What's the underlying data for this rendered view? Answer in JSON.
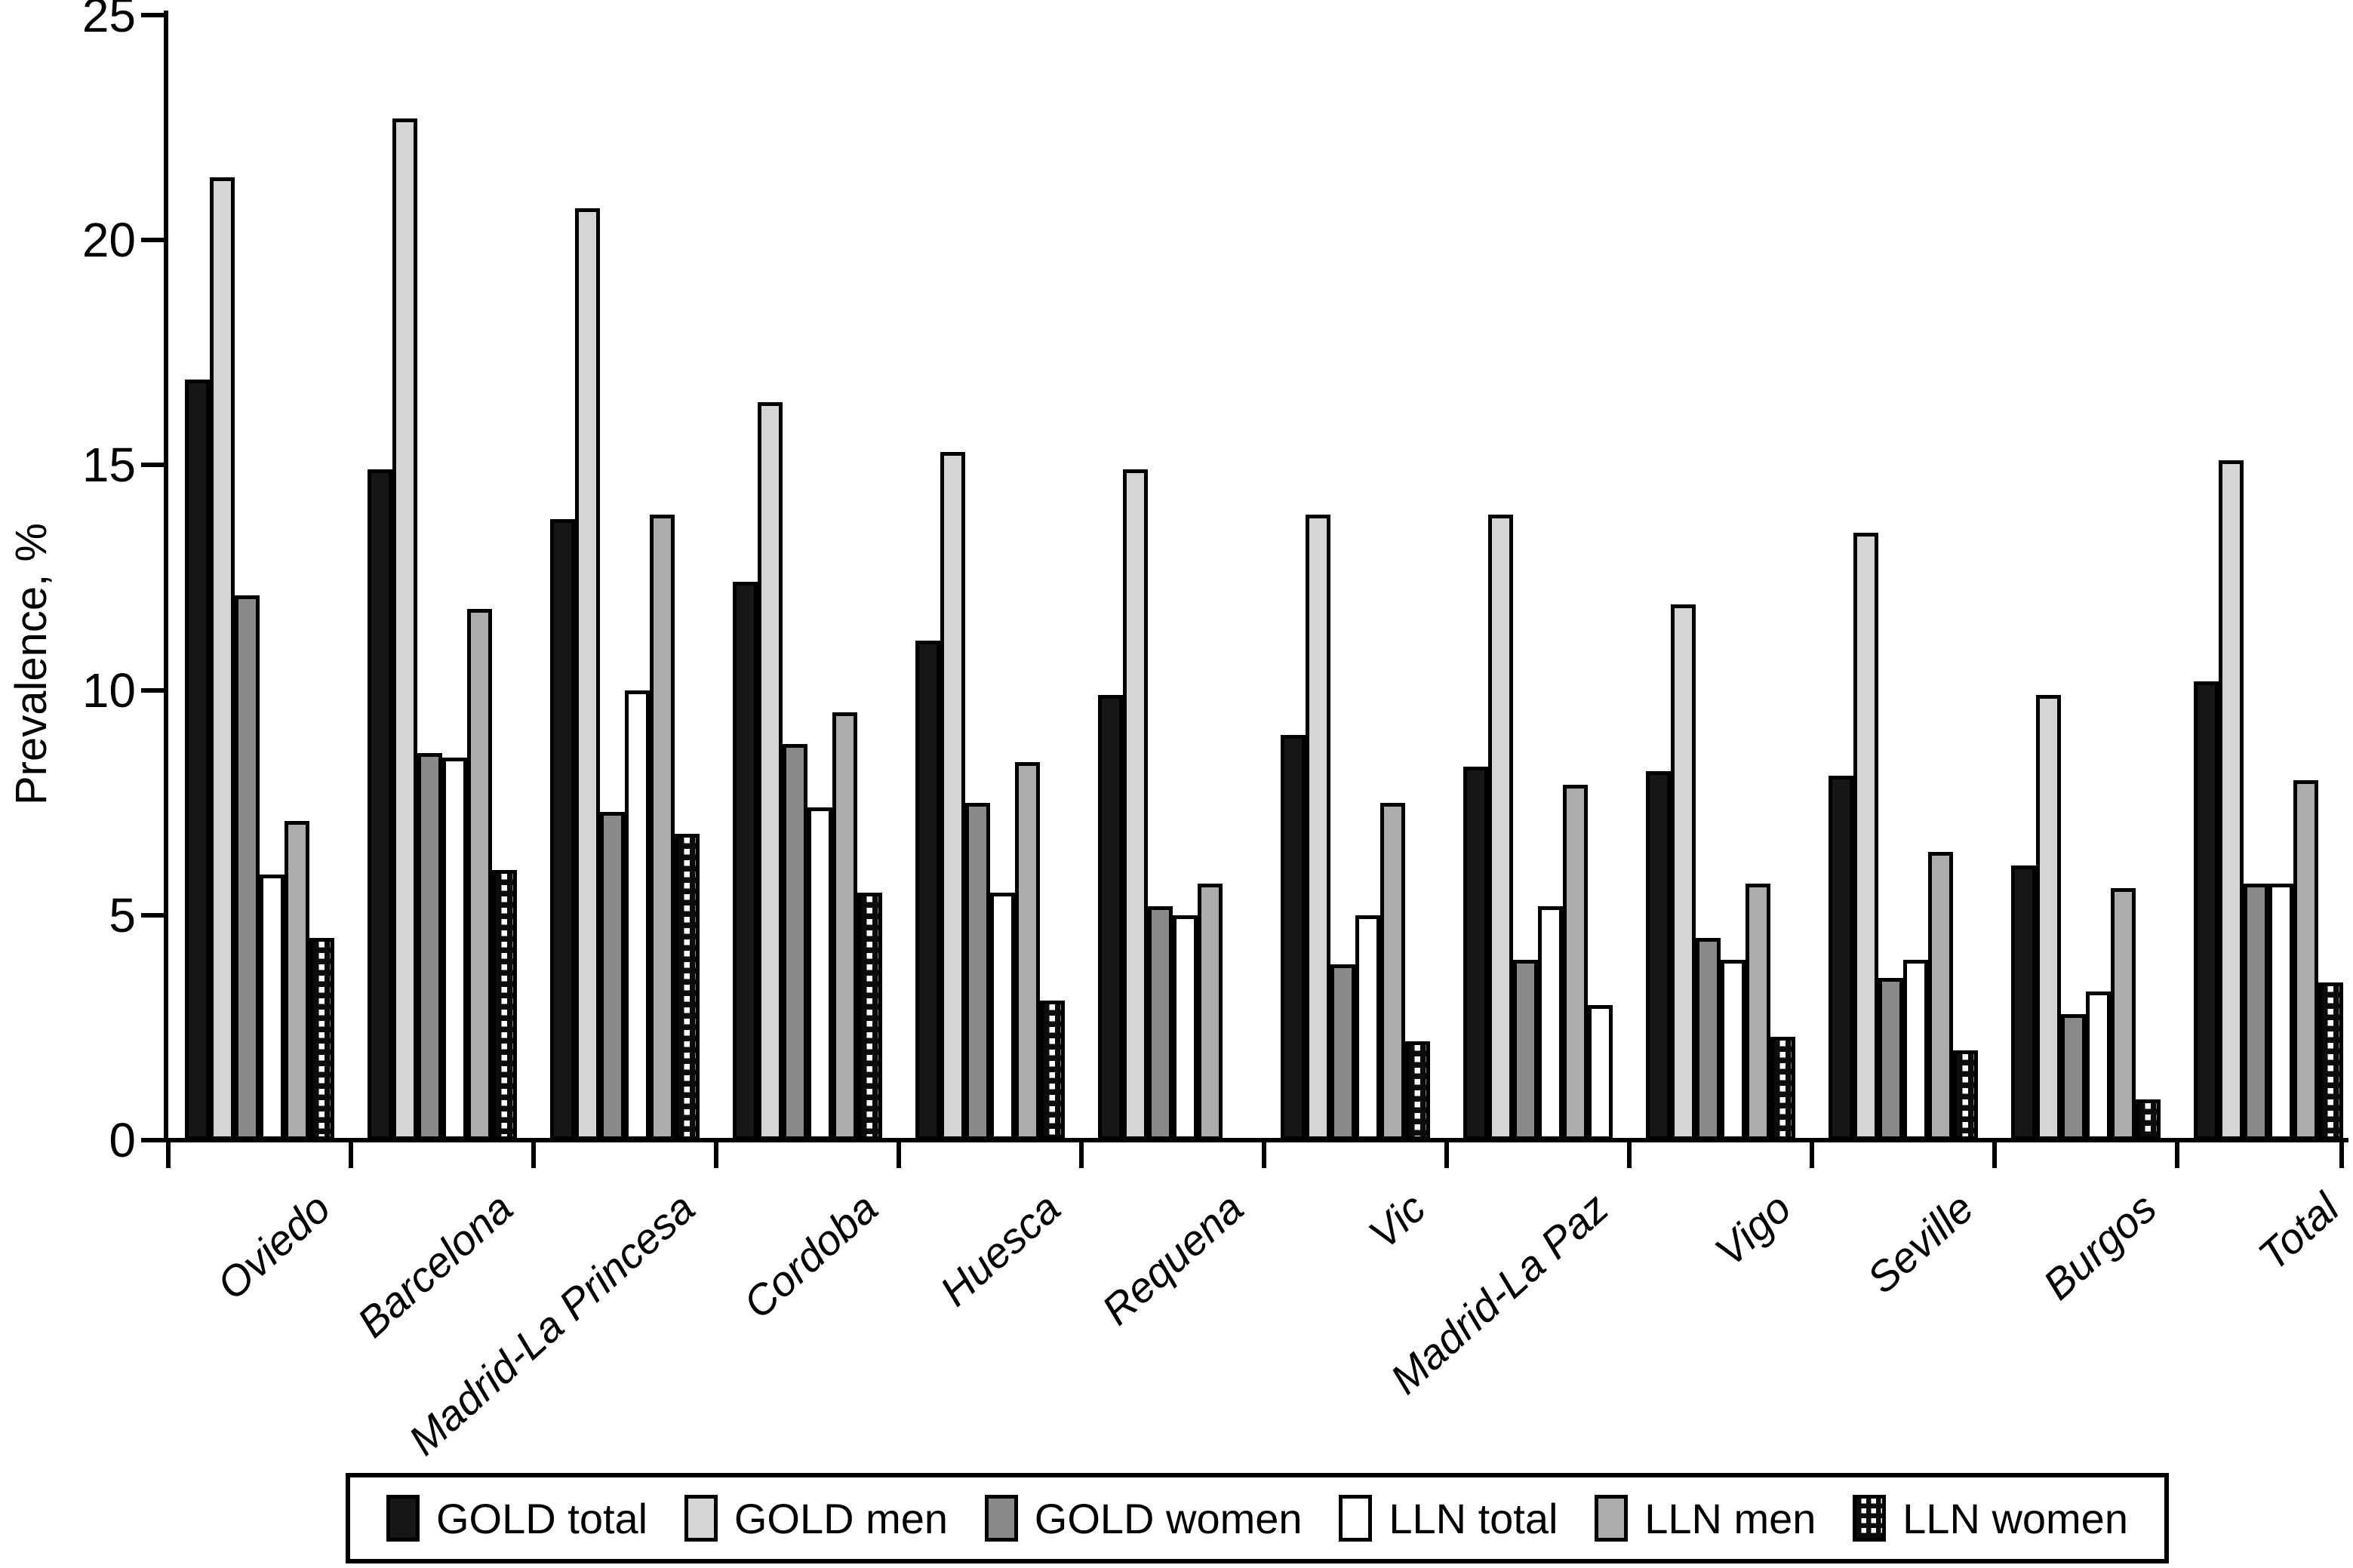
{
  "chart_data": {
    "type": "bar",
    "title": "",
    "ylabel": "Prevalence, %",
    "ylim": [
      0,
      25
    ],
    "yticks": [
      0,
      5,
      10,
      15,
      20,
      25
    ],
    "grid": false,
    "legend_position": "bottom",
    "categories": [
      "Oviedo",
      "Barcelona",
      "Madrid-La Princesa",
      "Cordoba",
      "Huesca",
      "Requena",
      "Vic",
      "Madrid-La Paz",
      "Vigo",
      "Seville",
      "Burgos",
      "Total"
    ],
    "series": [
      {
        "name": "GOLD total",
        "pattern": "solid-black",
        "color": "#161616",
        "values": [
          16.9,
          14.9,
          13.8,
          12.4,
          11.1,
          9.9,
          9.0,
          8.3,
          8.2,
          8.1,
          6.1,
          10.2
        ]
      },
      {
        "name": "GOLD men",
        "pattern": "light-gray",
        "color": "#d5d5d5",
        "values": [
          21.4,
          22.7,
          20.7,
          16.4,
          15.3,
          14.9,
          13.9,
          13.9,
          11.9,
          13.5,
          9.9,
          15.1
        ]
      },
      {
        "name": "GOLD women",
        "pattern": "dark-gray",
        "color": "#8a8a8a",
        "values": [
          12.1,
          8.6,
          7.3,
          8.8,
          7.5,
          5.2,
          3.9,
          4.0,
          4.5,
          3.6,
          2.8,
          5.7
        ]
      },
      {
        "name": "LLN total",
        "pattern": "white",
        "color": "#ffffff",
        "values": [
          5.9,
          8.5,
          10.0,
          7.4,
          5.5,
          5.0,
          5.0,
          5.2,
          4.0,
          4.0,
          3.3,
          5.7
        ]
      },
      {
        "name": "LLN men",
        "pattern": "medium-gray",
        "color": "#acacac",
        "values": [
          7.1,
          11.8,
          13.9,
          9.5,
          8.4,
          5.7,
          7.5,
          7.9,
          5.7,
          6.4,
          5.6,
          8.0
        ]
      },
      {
        "name": "LLN women",
        "pattern": "dotted-black-white",
        "color": "#0c0c0c",
        "values": [
          4.5,
          6.0,
          6.8,
          5.5,
          3.1,
          0,
          2.2,
          3.0,
          2.3,
          2.0,
          0.9,
          3.5
        ]
      }
    ],
    "bar_outline_color": "#000000",
    "pattern_overrides": [
      {
        "series": "LLN women",
        "category": "Madrid-La Paz",
        "pattern": "white"
      }
    ]
  }
}
